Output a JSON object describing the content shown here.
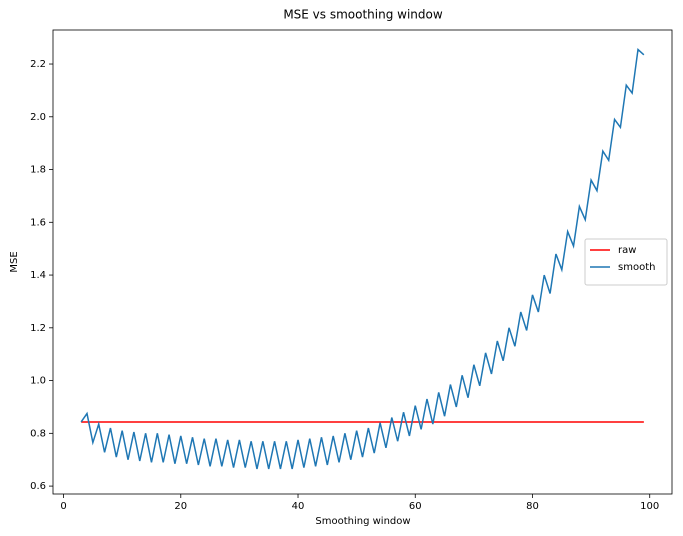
{
  "chart_data": {
    "type": "line",
    "title": "MSE vs smoothing window",
    "x_label": "Smoothing window",
    "y_label": "MSE",
    "x": [
      3,
      4,
      5,
      6,
      7,
      8,
      9,
      10,
      11,
      12,
      13,
      14,
      15,
      16,
      17,
      18,
      19,
      20,
      21,
      22,
      23,
      24,
      25,
      26,
      27,
      28,
      29,
      30,
      31,
      32,
      33,
      34,
      35,
      36,
      37,
      38,
      39,
      40,
      41,
      42,
      43,
      44,
      45,
      46,
      47,
      48,
      49,
      50,
      51,
      52,
      53,
      54,
      55,
      56,
      57,
      58,
      59,
      60,
      61,
      62,
      63,
      64,
      65,
      66,
      67,
      68,
      69,
      70,
      71,
      72,
      73,
      74,
      75,
      76,
      77,
      78,
      79,
      80,
      81,
      82,
      83,
      84,
      85,
      86,
      87,
      88,
      89,
      90,
      91,
      92,
      93,
      94,
      95,
      96,
      97,
      98,
      99
    ],
    "series": [
      {
        "name": "raw",
        "color": "#ff0000",
        "values": [
          0.843,
          0.843,
          0.843,
          0.843,
          0.843,
          0.843,
          0.843,
          0.843,
          0.843,
          0.843,
          0.843,
          0.843,
          0.843,
          0.843,
          0.843,
          0.843,
          0.843,
          0.843,
          0.843,
          0.843,
          0.843,
          0.843,
          0.843,
          0.843,
          0.843,
          0.843,
          0.843,
          0.843,
          0.843,
          0.843,
          0.843,
          0.843,
          0.843,
          0.843,
          0.843,
          0.843,
          0.843,
          0.843,
          0.843,
          0.843,
          0.843,
          0.843,
          0.843,
          0.843,
          0.843,
          0.843,
          0.843,
          0.843,
          0.843,
          0.843,
          0.843,
          0.843,
          0.843,
          0.843,
          0.843,
          0.843,
          0.843,
          0.843,
          0.843,
          0.843,
          0.843,
          0.843,
          0.843,
          0.843,
          0.843,
          0.843,
          0.843,
          0.843,
          0.843,
          0.843,
          0.843,
          0.843,
          0.843,
          0.843,
          0.843,
          0.843,
          0.843,
          0.843,
          0.843,
          0.843,
          0.843,
          0.843,
          0.843,
          0.843,
          0.843,
          0.843,
          0.843,
          0.843,
          0.843,
          0.843,
          0.843,
          0.843,
          0.843,
          0.843,
          0.843,
          0.843,
          0.843
        ]
      },
      {
        "name": "smooth",
        "color": "#1f77b4",
        "values": [
          0.843,
          0.875,
          0.765,
          0.835,
          0.728,
          0.82,
          0.71,
          0.81,
          0.7,
          0.805,
          0.695,
          0.8,
          0.69,
          0.8,
          0.69,
          0.795,
          0.685,
          0.79,
          0.685,
          0.785,
          0.68,
          0.78,
          0.675,
          0.78,
          0.675,
          0.775,
          0.67,
          0.775,
          0.67,
          0.77,
          0.665,
          0.77,
          0.665,
          0.77,
          0.665,
          0.77,
          0.665,
          0.775,
          0.67,
          0.78,
          0.675,
          0.785,
          0.68,
          0.79,
          0.69,
          0.8,
          0.7,
          0.81,
          0.71,
          0.82,
          0.725,
          0.84,
          0.745,
          0.86,
          0.77,
          0.88,
          0.79,
          0.905,
          0.815,
          0.93,
          0.835,
          0.955,
          0.865,
          0.985,
          0.9,
          1.02,
          0.935,
          1.06,
          0.98,
          1.105,
          1.025,
          1.15,
          1.075,
          1.2,
          1.13,
          1.26,
          1.19,
          1.325,
          1.26,
          1.4,
          1.33,
          1.48,
          1.42,
          1.565,
          1.51,
          1.66,
          1.61,
          1.76,
          1.72,
          1.87,
          1.835,
          1.99,
          1.96,
          2.12,
          2.09,
          2.255,
          2.235
        ]
      }
    ],
    "xlim": [
      -1.8,
      103.8
    ],
    "ylim": [
      0.57,
      2.329
    ],
    "xticks": [
      0,
      20,
      40,
      60,
      80,
      100
    ],
    "yticks": [
      0.6,
      0.8,
      {
        "value": 1.0,
        "label": "1.0"
      },
      1.2,
      1.4,
      1.6,
      1.8,
      {
        "value": 2.0,
        "label": "2.0"
      },
      2.2
    ],
    "legend": "center right"
  }
}
